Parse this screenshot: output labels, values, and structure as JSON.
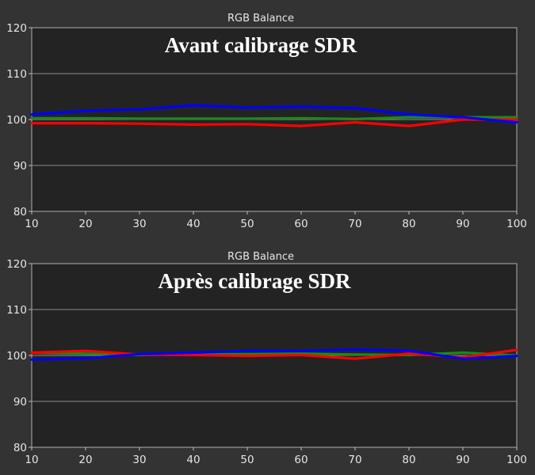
{
  "chart_data": [
    {
      "type": "line",
      "title": "RGB Balance",
      "heading": "Avant calibrage SDR",
      "x": [
        10,
        20,
        30,
        40,
        50,
        60,
        70,
        80,
        90,
        100
      ],
      "xlim": [
        10,
        100
      ],
      "ylim": [
        80,
        120
      ],
      "xticks": [
        "10",
        "20",
        "30",
        "40",
        "50",
        "60",
        "70",
        "80",
        "90",
        "100"
      ],
      "yticks": [
        "80",
        "90",
        "100",
        "110",
        "120"
      ],
      "grid": true,
      "series": [
        {
          "color": "#1a8a1a",
          "values": [
            100.3,
            100.3,
            100.2,
            100.2,
            100.2,
            100.3,
            100.1,
            100.5,
            100.5,
            100.5
          ]
        },
        {
          "color": "#ff0000",
          "values": [
            99.2,
            99.2,
            99.1,
            98.9,
            99.0,
            98.6,
            99.4,
            98.6,
            100.0,
            100.0
          ]
        },
        {
          "color": "#0000ff",
          "values": [
            101.1,
            101.9,
            102.2,
            103.1,
            102.6,
            102.8,
            102.5,
            101.1,
            100.5,
            99.4
          ]
        }
      ]
    },
    {
      "type": "line",
      "title": "RGB Balance",
      "heading": "Après calibrage SDR",
      "x": [
        10,
        20,
        30,
        40,
        50,
        60,
        70,
        80,
        90,
        100
      ],
      "xlim": [
        10,
        100
      ],
      "ylim": [
        80,
        120
      ],
      "xticks": [
        "10",
        "20",
        "30",
        "40",
        "50",
        "60",
        "70",
        "80",
        "90",
        "100"
      ],
      "yticks": [
        "80",
        "90",
        "100",
        "110",
        "120"
      ],
      "grid": true,
      "series": [
        {
          "color": "#1a8a1a",
          "values": [
            100.6,
            100.4,
            100.1,
            100.3,
            100.3,
            100.4,
            100.2,
            100.1,
            100.6,
            100.0
          ]
        },
        {
          "color": "#ff0000",
          "values": [
            100.6,
            101.0,
            100.2,
            100.1,
            99.9,
            100.1,
            99.3,
            100.4,
            99.6,
            101.2
          ]
        },
        {
          "color": "#0000ff",
          "values": [
            99.1,
            99.4,
            100.3,
            100.6,
            101.0,
            101.0,
            101.3,
            101.0,
            99.3,
            99.9
          ]
        }
      ]
    }
  ]
}
